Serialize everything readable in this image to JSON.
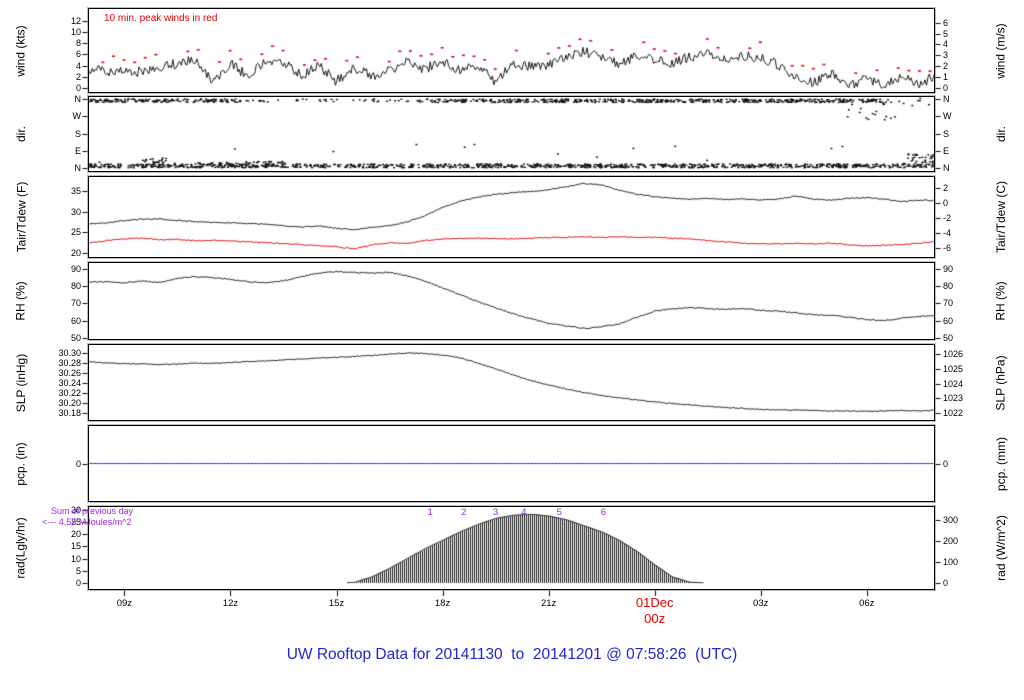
{
  "title": {
    "text": "UW Rooftop Data for 20141130  to  20141201 @ 07:58:26  (UTC)",
    "color": "#2323d6"
  },
  "colors": {
    "series_black": "#1a1a1a",
    "peak_red": "#e60000",
    "purple": "#a020f0",
    "precip_blue": "#1f1fff",
    "title_blue": "#2323d6",
    "panel_border": "#000000"
  },
  "xaxis": {
    "hour_range": [
      7.97,
      31.93
    ],
    "highlight_color": "#e60000",
    "ticks": [
      {
        "hour": 9,
        "label": "09z"
      },
      {
        "hour": 12,
        "label": "12z"
      },
      {
        "hour": 15,
        "label": "15z"
      },
      {
        "hour": 18,
        "label": "18z"
      },
      {
        "hour": 21,
        "label": "21z"
      },
      {
        "hour": 24,
        "label": "01Dec",
        "sublabel": "00z",
        "highlight": true
      },
      {
        "hour": 27,
        "label": "03z"
      },
      {
        "hour": 30,
        "label": "06z"
      }
    ]
  },
  "chart_data": {
    "type": "line",
    "subtype": "meteogram-7-panel",
    "x_hours": [
      8,
      8.5,
      9,
      9.5,
      10,
      10.5,
      11,
      11.5,
      12,
      12.5,
      13,
      13.5,
      14,
      14.5,
      15,
      15.5,
      16,
      16.5,
      17,
      17.5,
      18,
      18.5,
      19,
      19.5,
      20,
      20.5,
      21,
      21.5,
      22,
      22.5,
      23,
      23.5,
      24,
      24.5,
      25,
      25.5,
      26,
      26.5,
      27,
      27.5,
      28,
      28.5,
      29,
      29.5,
      30,
      30.5,
      31,
      31.5,
      32
    ],
    "panels": [
      {
        "id": "wind",
        "ylabel_left": "wind (kts)",
        "ylabel_right": "wind (m/s)",
        "ylim": [
          -0.9,
          14.3
        ],
        "yticks_left": [
          {
            "v": 0,
            "label": "0"
          },
          {
            "v": 2,
            "label": "2"
          },
          {
            "v": 4,
            "label": "4"
          },
          {
            "v": 6,
            "label": "6"
          },
          {
            "v": 8,
            "label": "8"
          },
          {
            "v": 10,
            "label": "10"
          },
          {
            "v": 12,
            "label": "12"
          }
        ],
        "yticks_right": [
          {
            "v": 0,
            "label": "0"
          },
          {
            "v": 1.944,
            "label": "1"
          },
          {
            "v": 3.888,
            "label": "2"
          },
          {
            "v": 5.832,
            "label": "3"
          },
          {
            "v": 7.775,
            "label": "4"
          },
          {
            "v": 9.719,
            "label": "5"
          },
          {
            "v": 11.663,
            "label": "6"
          }
        ],
        "annotation": {
          "text": "10 min. peak winds in red",
          "color": "#e60000"
        },
        "series": [
          {
            "name": "wind speed (kts)",
            "color": "#1a1a1a",
            "style": "line",
            "jitter": 0.9,
            "clamp_min": 0,
            "values": [
              3.2,
              3.0,
              3.3,
              2.8,
              3.6,
              4.4,
              5.0,
              1.0,
              4.4,
              2.0,
              4.8,
              4.5,
              2.2,
              4.0,
              1.2,
              3.6,
              2.2,
              3.2,
              4.6,
              3.4,
              4.8,
              3.2,
              4.2,
              1.0,
              4.5,
              3.8,
              4.2,
              5.2,
              6.6,
              5.4,
              4.2,
              5.8,
              5.0,
              4.4,
              5.6,
              6.2,
              5.2,
              5.8,
              5.4,
              4.2,
              2.0,
              1.0,
              2.6,
              0.2,
              2.0,
              0.2,
              2.2,
              0.6,
              2.5
            ]
          },
          {
            "name": "10 min. peak wind (kts)",
            "color": "#e60000",
            "style": "peak-dots",
            "offset": 1.6
          }
        ]
      },
      {
        "id": "dir",
        "ylabel_left": "dir.",
        "ylabel_right": "dir.",
        "ylim": [
          -21,
          376
        ],
        "yticks_left": [
          {
            "v": 360,
            "label": "N"
          },
          {
            "v": 270,
            "label": "W"
          },
          {
            "v": 180,
            "label": "S"
          },
          {
            "v": 90,
            "label": "E"
          },
          {
            "v": 0,
            "label": "N"
          }
        ],
        "yticks_right": [
          {
            "v": 360,
            "label": "N"
          },
          {
            "v": 270,
            "label": "W"
          },
          {
            "v": 180,
            "label": "S"
          },
          {
            "v": 90,
            "label": "E"
          },
          {
            "v": 0,
            "label": "N"
          }
        ],
        "series": [
          {
            "name": "wind direction (deg, mostly northerly)",
            "color": "#111111",
            "style": "scatter-bands",
            "bands": [
              {
                "x": [
                  8.0,
                  12.3
                ],
                "deg": 352,
                "spread": 9,
                "pph": 40
              },
              {
                "x": [
                  12.3,
                  17.6
                ],
                "deg": 352,
                "spread": 8,
                "pph": 9
              },
              {
                "x": [
                  17.6,
                  30.4
                ],
                "deg": 351,
                "spread": 9,
                "pph": 42
              },
              {
                "x": [
                  30.4,
                  31.9
                ],
                "deg": 345,
                "spread": 20,
                "pph": 8
              },
              {
                "x": [
                  29.4,
                  30.8
                ],
                "deg": 300,
                "spread": 55,
                "pph": 12
              },
              {
                "x": [
                  8.0,
                  31.9
                ],
                "deg": 11,
                "spread": 10,
                "pph": 46
              },
              {
                "x": [
                  9.4,
                  10.2
                ],
                "deg": 38,
                "spread": 14,
                "pph": 26
              },
              {
                "x": [
                  11.0,
                  13.6
                ],
                "deg": 24,
                "spread": 10,
                "pph": 22
              },
              {
                "x": [
                  31.0,
                  31.93
                ],
                "deg": 45,
                "spread": 28,
                "pph": 40
              },
              {
                "x": [
                  8.0,
                  31.9
                ],
                "deg": 70,
                "spread": 60,
                "pph": 0.7
              }
            ]
          }
        ]
      },
      {
        "id": "temp",
        "ylabel_left": "Tair/Tdew (F)",
        "ylabel_right": "Tair/Tdew (C)",
        "ylim": [
          18.8,
          38.6
        ],
        "yticks_left": [
          {
            "v": 20,
            "label": "20"
          },
          {
            "v": 25,
            "label": "25"
          },
          {
            "v": 30,
            "label": "30"
          },
          {
            "v": 35,
            "label": "35"
          }
        ],
        "yticks_right": [
          {
            "v": 35.6,
            "label": "2"
          },
          {
            "v": 32,
            "label": "0"
          },
          {
            "v": 28.4,
            "label": "-2"
          },
          {
            "v": 24.8,
            "label": "-4"
          },
          {
            "v": 21.2,
            "label": "-6"
          }
        ],
        "series": [
          {
            "name": "Tair (F)",
            "color": "#1a1a1a",
            "style": "line",
            "jitter": 0.12,
            "values": [
              27.0,
              27.3,
              27.8,
              28.2,
              28.2,
              27.9,
              27.6,
              27.4,
              27.3,
              27.1,
              27.0,
              26.6,
              26.3,
              26.5,
              26.0,
              25.6,
              26.2,
              26.6,
              27.5,
              29.0,
              31.0,
              32.5,
              33.5,
              34.2,
              34.6,
              34.9,
              35.3,
              36.0,
              36.8,
              36.4,
              35.2,
              34.2,
              33.6,
              33.2,
              33.0,
              33.2,
              32.9,
              33.1,
              32.8,
              33.0,
              33.8,
              33.0,
              32.8,
              33.2,
              33.4,
              33.0,
              32.4,
              32.8,
              32.6
            ]
          },
          {
            "name": "Tdew (F)",
            "color": "#e60000",
            "style": "line",
            "jitter": 0.12,
            "values": [
              22.4,
              23.0,
              23.4,
              23.6,
              23.2,
              23.3,
              23.0,
              23.1,
              22.9,
              22.7,
              22.5,
              22.3,
              22.0,
              21.8,
              21.5,
              21.0,
              22.0,
              22.5,
              22.3,
              23.0,
              23.4,
              23.5,
              23.6,
              23.5,
              23.4,
              23.6,
              23.7,
              23.8,
              23.9,
              23.8,
              23.9,
              23.8,
              23.8,
              23.6,
              23.4,
              23.0,
              22.7,
              22.4,
              22.2,
              22.2,
              22.3,
              22.2,
              22.4,
              22.0,
              21.7,
              21.9,
              22.0,
              22.4,
              22.8
            ]
          }
        ]
      },
      {
        "id": "rh",
        "ylabel_left": "RH (%)",
        "ylabel_right": "RH (%)",
        "ylim": [
          48.8,
          94.0
        ],
        "yticks_left": [
          {
            "v": 50,
            "label": "50"
          },
          {
            "v": 60,
            "label": "60"
          },
          {
            "v": 70,
            "label": "70"
          },
          {
            "v": 80,
            "label": "80"
          },
          {
            "v": 90,
            "label": "90"
          }
        ],
        "yticks_right": [
          {
            "v": 50,
            "label": "50"
          },
          {
            "v": 60,
            "label": "60"
          },
          {
            "v": 70,
            "label": "70"
          },
          {
            "v": 80,
            "label": "80"
          },
          {
            "v": 90,
            "label": "90"
          }
        ],
        "series": [
          {
            "name": "relative humidity (%)",
            "color": "#1a1a1a",
            "style": "line",
            "jitter": 0.3,
            "values": [
              82.5,
              82.5,
              82.0,
              83.0,
              82.0,
              84.5,
              85.5,
              85.0,
              84.0,
              82.5,
              82.0,
              83.0,
              85.5,
              87.5,
              88.5,
              88.0,
              87.5,
              88.0,
              86.0,
              83.0,
              79.0,
              75.0,
              71.0,
              67.5,
              64.0,
              61.0,
              58.5,
              57.0,
              55.5,
              56.5,
              58.0,
              62.0,
              65.5,
              67.0,
              67.5,
              67.0,
              66.5,
              67.0,
              66.0,
              65.5,
              64.5,
              63.5,
              63.0,
              62.0,
              60.5,
              60.0,
              61.5,
              62.5,
              63.0
            ]
          }
        ]
      },
      {
        "id": "slp",
        "ylabel_left": "SLP (inHg)",
        "ylabel_right": "SLP (hPa)",
        "ylim": [
          30.164,
          30.318
        ],
        "yticks_left": [
          {
            "v": 30.18,
            "label": "30.18"
          },
          {
            "v": 30.2,
            "label": "30.20"
          },
          {
            "v": 30.22,
            "label": "30.22"
          },
          {
            "v": 30.24,
            "label": "30.24"
          },
          {
            "v": 30.26,
            "label": "30.26"
          },
          {
            "v": 30.28,
            "label": "30.28"
          },
          {
            "v": 30.3,
            "label": "30.30"
          }
        ],
        "yticks_right": [
          {
            "v": 30.1797,
            "label": "1022"
          },
          {
            "v": 30.2093,
            "label": "1023"
          },
          {
            "v": 30.2388,
            "label": "1024"
          },
          {
            "v": 30.2683,
            "label": "1025"
          },
          {
            "v": 30.2978,
            "label": "1026"
          }
        ],
        "series": [
          {
            "name": "sea level pressure (inHg)",
            "color": "#1a1a1a",
            "style": "line",
            "jitter": 0.0009,
            "values": [
              30.282,
              30.28,
              30.279,
              30.278,
              30.277,
              30.278,
              30.28,
              30.279,
              30.281,
              30.283,
              30.284,
              30.286,
              30.288,
              30.29,
              30.291,
              30.293,
              30.295,
              30.298,
              30.3,
              30.299,
              30.296,
              30.29,
              30.28,
              30.268,
              30.256,
              30.245,
              30.236,
              30.228,
              30.221,
              30.215,
              30.21,
              30.206,
              30.202,
              30.199,
              30.196,
              30.193,
              30.191,
              30.189,
              30.187,
              30.186,
              30.186,
              30.185,
              30.184,
              30.184,
              30.183,
              30.184,
              30.185,
              30.184,
              30.186
            ]
          }
        ]
      },
      {
        "id": "pcp",
        "ylabel_left": "pcp. (in)",
        "ylabel_right": "pcp. (mm)",
        "ylim": [
          -1,
          1
        ],
        "yticks_left": [
          {
            "v": 0,
            "label": "0"
          }
        ],
        "yticks_right": [
          {
            "v": 0,
            "label": "0"
          }
        ],
        "series": [
          {
            "name": "precipitation (in)",
            "color": "#1f1fff",
            "style": "line",
            "jitter": 0,
            "values": [
              0,
              0,
              0,
              0,
              0,
              0,
              0,
              0,
              0,
              0,
              0,
              0,
              0,
              0,
              0,
              0,
              0,
              0,
              0,
              0,
              0,
              0,
              0,
              0,
              0,
              0,
              0,
              0,
              0,
              0,
              0,
              0,
              0,
              0,
              0,
              0,
              0,
              0,
              0,
              0,
              0,
              0,
              0,
              0,
              0,
              0,
              0,
              0,
              0
            ]
          }
        ]
      },
      {
        "id": "rad",
        "ylabel_left": "rad(Lgly/hr)",
        "ylabel_right": "rad (W/m^2)",
        "ylim": [
          -2.9,
          31.6
        ],
        "yticks_left": [
          {
            "v": 0,
            "label": "0"
          },
          {
            "v": 5,
            "label": "5"
          },
          {
            "v": 10,
            "label": "10"
          },
          {
            "v": 15,
            "label": "15"
          },
          {
            "v": 20,
            "label": "20"
          },
          {
            "v": 25,
            "label": "25"
          },
          {
            "v": 30,
            "label": "30"
          }
        ],
        "yticks_right": [
          {
            "v": 0,
            "label": "0"
          },
          {
            "v": 8.6,
            "label": "100"
          },
          {
            "v": 17.2,
            "label": "200"
          },
          {
            "v": 25.8,
            "label": "300"
          }
        ],
        "annotation": {
          "line1": "Sum of previous day",
          "line2": "<--- 4.55 MJoules/m^2",
          "color": "#a020f0"
        },
        "markers": [
          {
            "hour": 17.65,
            "label": "1"
          },
          {
            "hour": 18.6,
            "label": "2"
          },
          {
            "hour": 19.5,
            "label": "3"
          },
          {
            "hour": 20.3,
            "label": "4"
          },
          {
            "hour": 21.3,
            "label": "5"
          },
          {
            "hour": 22.55,
            "label": "6"
          }
        ],
        "series": [
          {
            "name": "solar radiation (Lgly/hr)",
            "color": "#1b1b1b",
            "style": "area-hatch",
            "values": [
              0,
              0,
              0,
              0,
              0,
              0,
              0,
              0,
              0,
              0,
              0,
              0,
              0,
              0,
              0,
              0.2,
              2.5,
              6,
              10,
              14,
              17.5,
              21,
              24,
              26.5,
              27.8,
              28.2,
              27.5,
              26,
              23.5,
              21,
              17.5,
              13,
              7.5,
              2.5,
              0.3,
              0,
              0,
              0,
              0,
              0,
              0,
              0,
              0,
              0,
              0,
              0,
              0,
              0,
              0
            ]
          }
        ]
      }
    ]
  }
}
